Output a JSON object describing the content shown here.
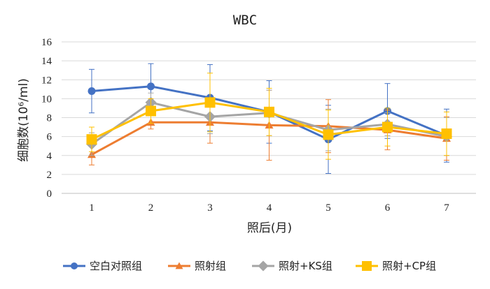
{
  "chart_data": {
    "type": "line",
    "title": "WBC",
    "xlabel": "照后(月)",
    "ylabel": "细胞数(10⁶/ml)",
    "categories": [
      "1",
      "2",
      "3",
      "4",
      "5",
      "6",
      "7"
    ],
    "ylim": [
      0,
      16
    ],
    "yticks": [
      "0",
      "2",
      "4",
      "6",
      "8",
      "10",
      "12",
      "14",
      "16"
    ],
    "grid": true,
    "legend_position": "bottom",
    "series": [
      {
        "name": "空白对照组",
        "color": "#4472C4",
        "marker": "circle",
        "values": [
          10.8,
          11.3,
          10.1,
          8.6,
          5.7,
          8.7,
          6.1
        ],
        "error": [
          2.3,
          2.4,
          3.5,
          3.3,
          3.6,
          2.9,
          2.8
        ]
      },
      {
        "name": "照射组",
        "color": "#ED7D31",
        "marker": "triangle",
        "values": [
          4.1,
          7.5,
          7.5,
          7.2,
          7.1,
          6.7,
          5.8
        ],
        "error": [
          1.1,
          0.7,
          2.2,
          3.7,
          2.8,
          2.1,
          2.3
        ]
      },
      {
        "name": "照射+KS组",
        "color": "#A5A5A5",
        "marker": "diamond",
        "values": [
          5.2,
          9.6,
          8.1,
          8.5,
          6.7,
          7.3,
          6.0
        ],
        "error": [
          1.2,
          1.0,
          1.8,
          2.4,
          2.2,
          1.2,
          2.0
        ]
      },
      {
        "name": "照射+CP组",
        "color": "#FFC000",
        "marker": "square",
        "values": [
          5.7,
          8.7,
          9.6,
          8.6,
          6.2,
          7.0,
          6.3
        ],
        "error": [
          1.3,
          1.3,
          3.1,
          2.5,
          2.6,
          2.0,
          2.3
        ]
      }
    ]
  }
}
